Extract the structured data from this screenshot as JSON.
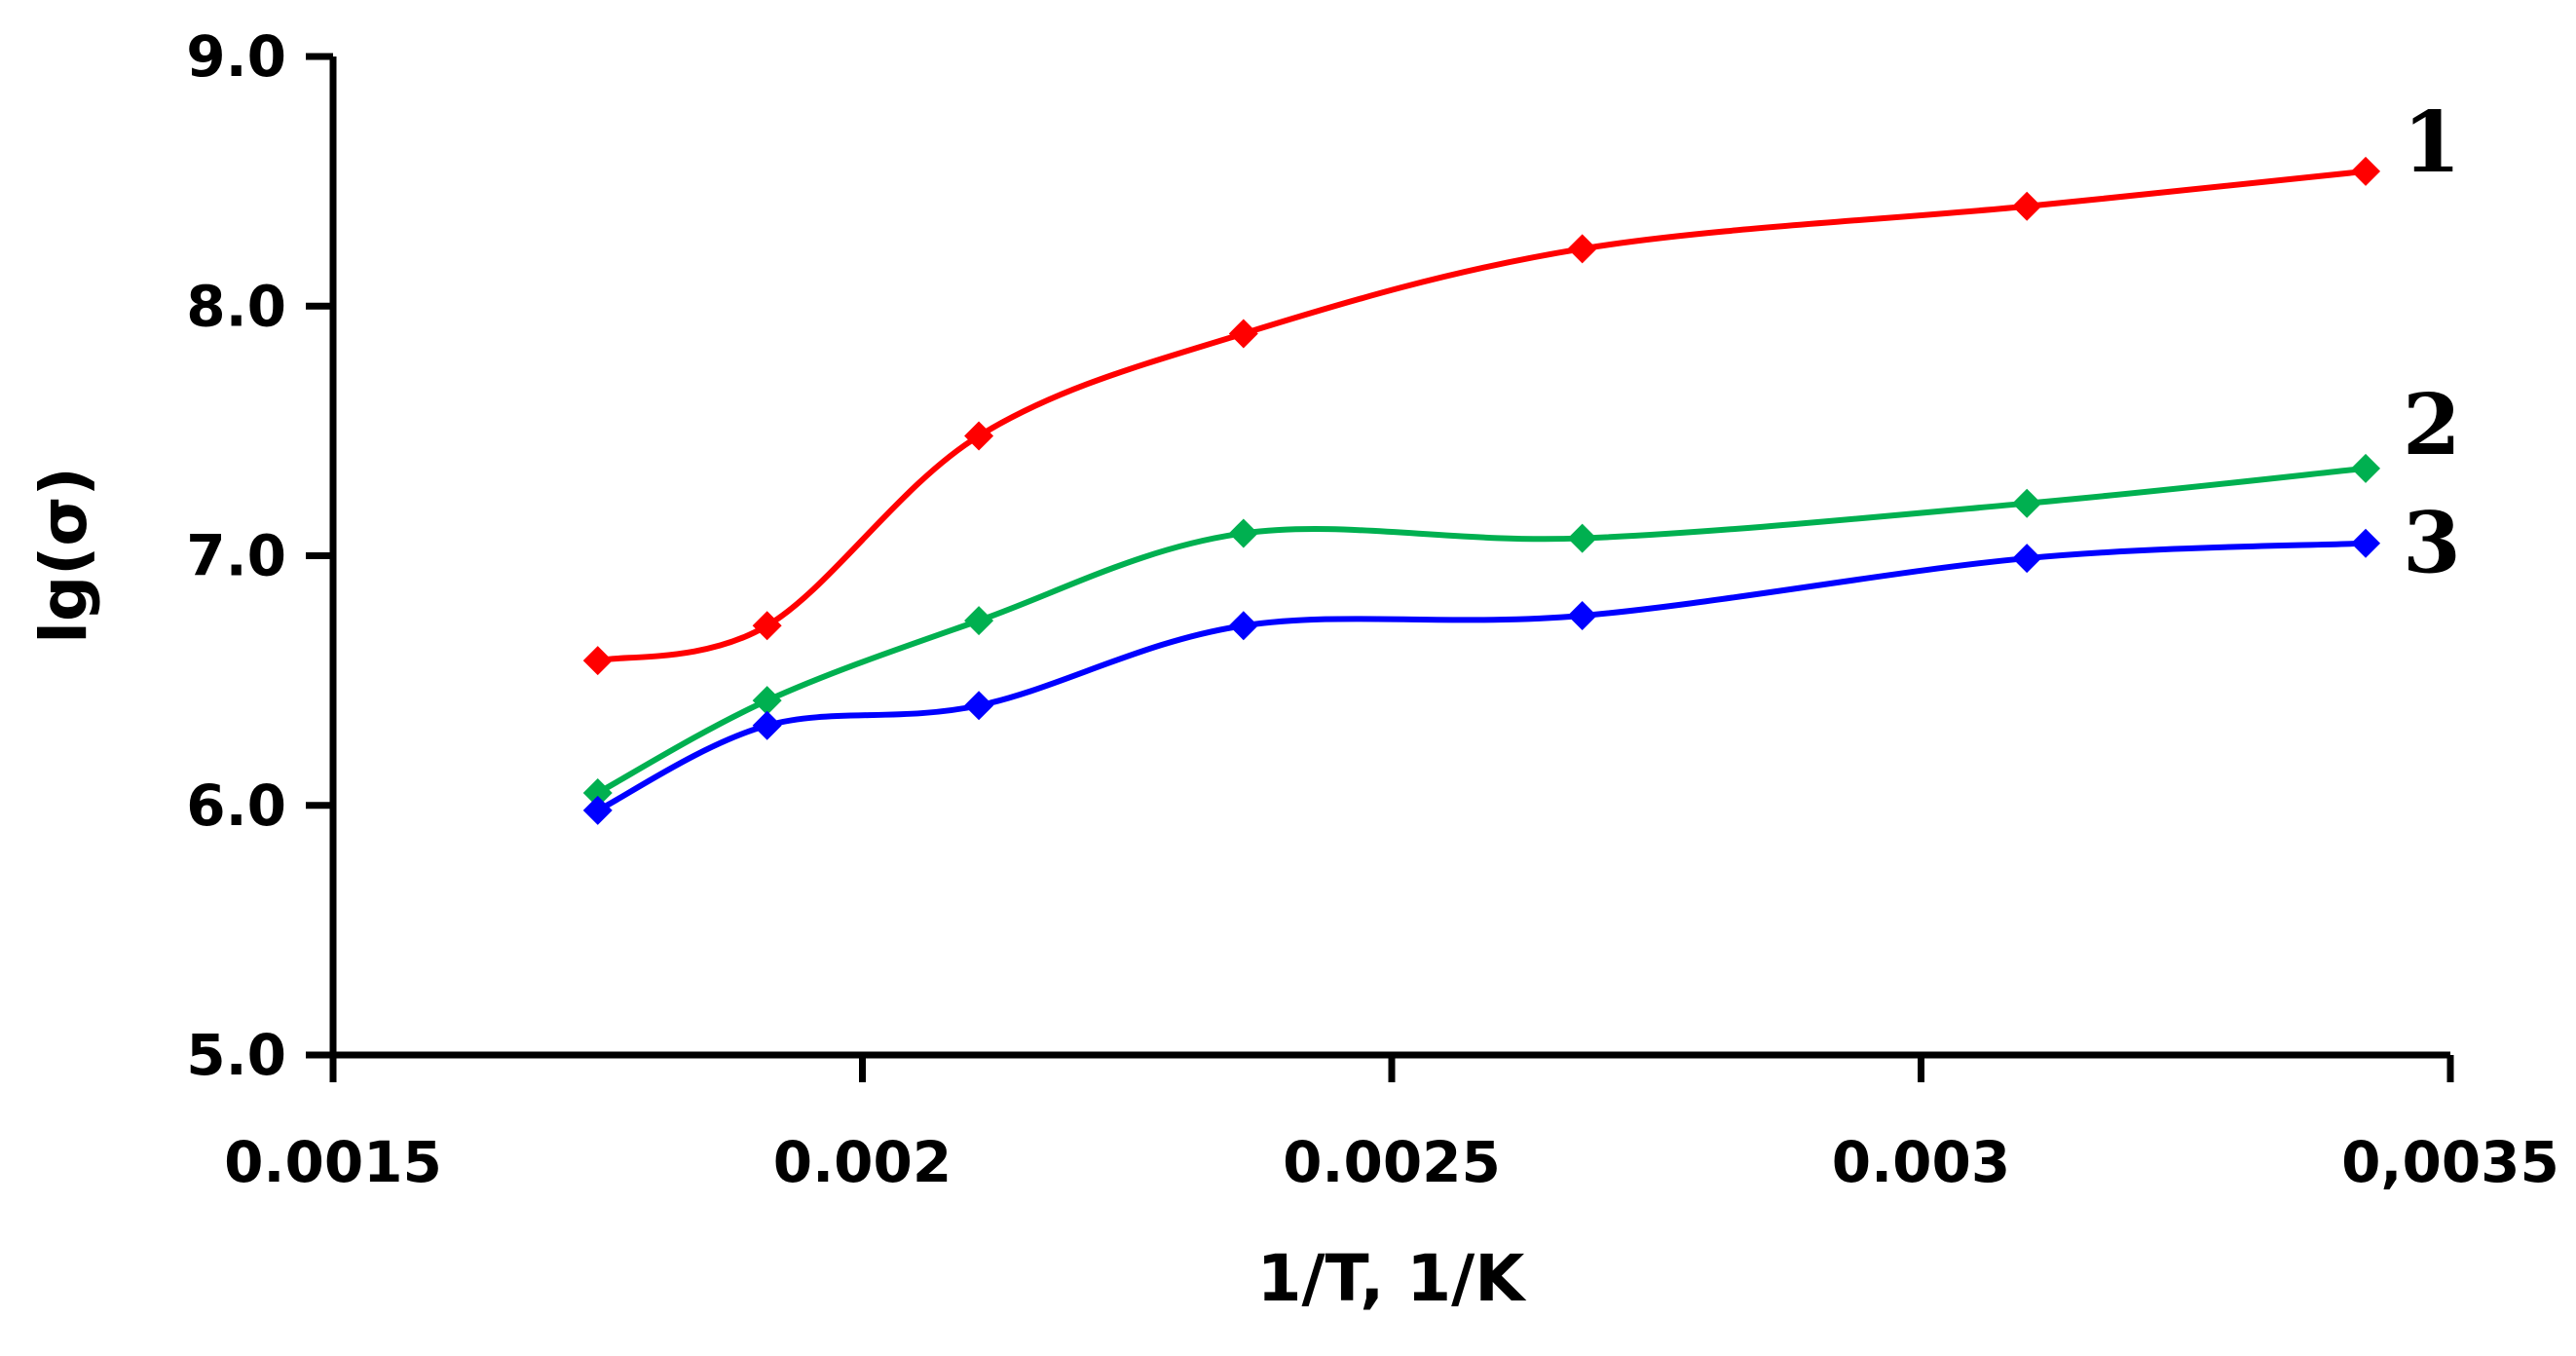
{
  "chart_data": {
    "type": "line",
    "title": "",
    "xlabel": "1/T, 1/K",
    "ylabel": "lg(σ)",
    "xlim": [
      0.0015,
      0.0035
    ],
    "ylim": [
      5.0,
      9.0
    ],
    "grid": false,
    "x_ticks": [
      {
        "value": 0.0015,
        "label": "0.0015"
      },
      {
        "value": 0.002,
        "label": "0.002"
      },
      {
        "value": 0.0025,
        "label": "0.0025"
      },
      {
        "value": 0.003,
        "label": "0.003"
      },
      {
        "value": 0.0035,
        "label": "0,0035"
      }
    ],
    "y_ticks": [
      {
        "value": 5.0,
        "label": "5.0"
      },
      {
        "value": 6.0,
        "label": "6.0"
      },
      {
        "value": 7.0,
        "label": "7.0"
      },
      {
        "value": 8.0,
        "label": "8.0"
      },
      {
        "value": 9.0,
        "label": "9.0"
      }
    ],
    "x": [
      0.00175,
      0.00191,
      0.00211,
      0.00236,
      0.00268,
      0.0031,
      0.00342
    ],
    "series": [
      {
        "name": "1",
        "color": "#ff0000",
        "values": [
          6.58,
          6.72,
          7.48,
          7.89,
          8.23,
          8.4,
          8.54
        ]
      },
      {
        "name": "2",
        "color": "#00b050",
        "values": [
          6.05,
          6.42,
          6.74,
          7.09,
          7.07,
          7.21,
          7.35
        ]
      },
      {
        "name": "3",
        "color": "#0000ff",
        "values": [
          5.98,
          6.32,
          6.4,
          6.72,
          6.76,
          6.99,
          7.05
        ]
      }
    ]
  }
}
